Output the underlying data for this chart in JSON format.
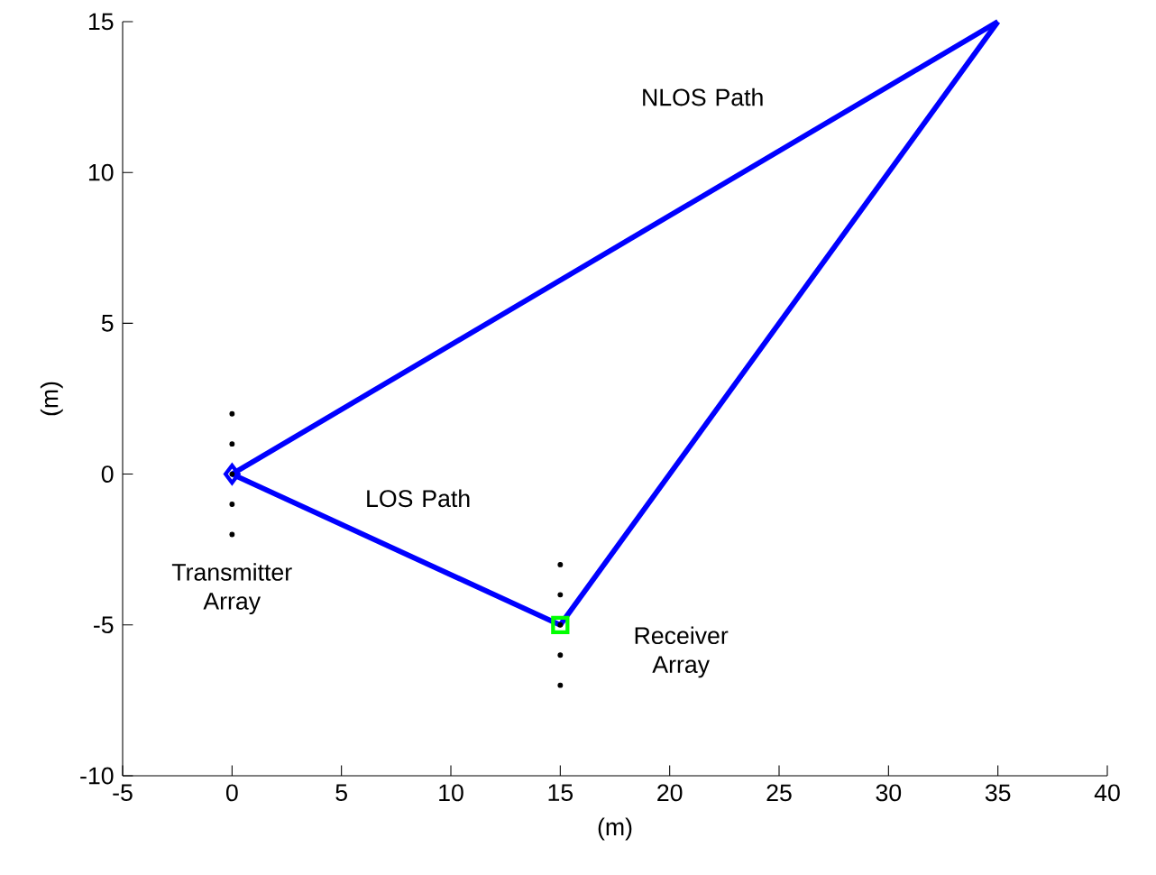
{
  "chart_data": {
    "type": "line",
    "xlabel": "(m)",
    "ylabel": "(m)",
    "xlim": [
      -5,
      40
    ],
    "xticks": [
      -5,
      0,
      5,
      10,
      15,
      20,
      25,
      30,
      35,
      40
    ],
    "ylim": [
      -10,
      15
    ],
    "yticks": [
      -10,
      -5,
      0,
      5,
      10,
      15
    ],
    "grid": false,
    "series": [
      {
        "color": "#0000ff",
        "marker": "none",
        "x": [
          0,
          15
        ],
        "values": [
          0,
          -5
        ]
      },
      {
        "color": "#0000ff",
        "marker": "none",
        "x": [
          0,
          35
        ],
        "values": [
          0,
          15
        ]
      },
      {
        "color": "#0000ff",
        "marker": "none",
        "x": [
          15,
          35
        ],
        "values": [
          -5,
          15
        ]
      },
      {
        "type": "scatter",
        "color": "#0000ff",
        "marker": "diamond",
        "x": [
          0
        ],
        "values": [
          0
        ]
      },
      {
        "type": "scatter",
        "color": "#00ff00",
        "marker": "square",
        "x": [
          15
        ],
        "values": [
          -5
        ]
      },
      {
        "type": "scatter",
        "color": "#000000",
        "marker": "circle",
        "x": [
          0,
          0,
          0,
          0,
          0
        ],
        "values": [
          2,
          1,
          0,
          -1,
          -2
        ]
      },
      {
        "type": "scatter",
        "color": "#000000",
        "marker": "circle",
        "x": [
          15,
          15,
          15,
          15,
          15
        ],
        "values": [
          -3,
          -4,
          -5,
          -6,
          -7
        ]
      }
    ],
    "annotations": [
      "NLOS Path",
      "LOS Path",
      "Transmitter Array",
      "Receiver Array"
    ]
  }
}
